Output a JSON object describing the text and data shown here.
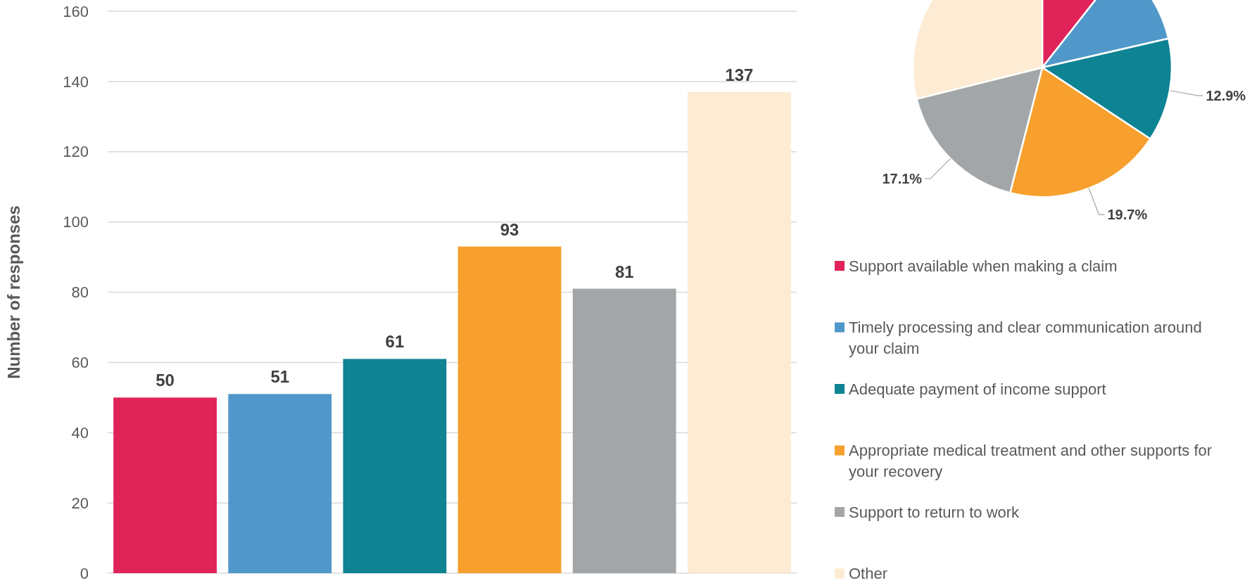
{
  "chart_data": [
    {
      "type": "bar",
      "ylabel": "Number of responses",
      "categories": [
        null,
        null,
        null,
        null,
        null,
        null
      ],
      "values": [
        50,
        51,
        61,
        93,
        81,
        137
      ],
      "colors": [
        "#e0245a",
        "#4f98c9",
        "#0e8394",
        "#f7a02d",
        "#a3a6a9",
        "#fdebd3"
      ],
      "ylim": [
        0,
        160
      ],
      "yticks": [
        0,
        20,
        40,
        60,
        80,
        100,
        120,
        140,
        160
      ],
      "grid": "y",
      "data_labels": true
    },
    {
      "type": "pie",
      "categories": [
        "Support available when making a claim",
        "Timely processing and clear communication around your claim",
        "Adequate payment of income support",
        "Appropriate medical treatment and other supports for your recovery",
        "Support to return to work",
        "Other"
      ],
      "values": [
        10.6,
        10.8,
        12.9,
        19.7,
        17.1,
        28.9
      ],
      "value_labels": [
        null,
        null,
        "12.9%",
        "19.7%",
        "17.1%",
        null
      ],
      "colors": [
        "#e0245a",
        "#4f98c9",
        "#0e8394",
        "#f7a02d",
        "#a3a6a9",
        "#fdebd3"
      ],
      "legend": "bottom"
    }
  ]
}
